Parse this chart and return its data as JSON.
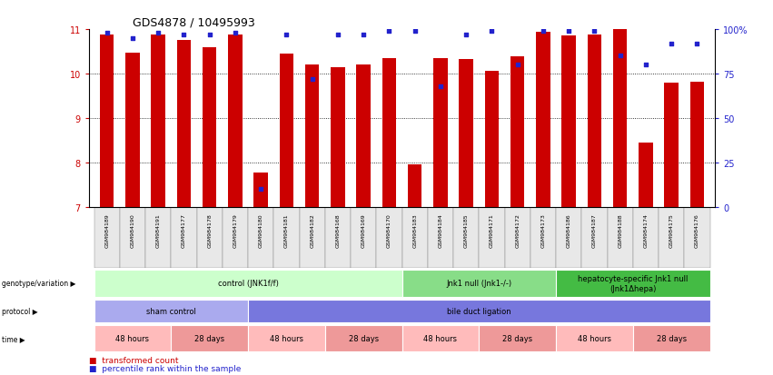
{
  "title": "GDS4878 / 10495993",
  "samples": [
    "GSM984189",
    "GSM984190",
    "GSM984191",
    "GSM984177",
    "GSM984178",
    "GSM984179",
    "GSM984180",
    "GSM984181",
    "GSM984182",
    "GSM984168",
    "GSM984169",
    "GSM984170",
    "GSM984183",
    "GSM984184",
    "GSM984185",
    "GSM984171",
    "GSM984172",
    "GSM984173",
    "GSM984186",
    "GSM984187",
    "GSM984188",
    "GSM984174",
    "GSM984175",
    "GSM984176"
  ],
  "bar_values": [
    10.88,
    10.47,
    10.87,
    10.75,
    10.6,
    10.87,
    7.78,
    10.46,
    10.2,
    10.15,
    10.2,
    10.35,
    7.95,
    10.35,
    10.32,
    10.07,
    10.38,
    10.95,
    10.85,
    10.87,
    11.0,
    8.45,
    9.8,
    9.82
  ],
  "dot_values": [
    98,
    95,
    98,
    97,
    97,
    98,
    10,
    97,
    72,
    97,
    97,
    99,
    99,
    68,
    97,
    99,
    80,
    99,
    99,
    99,
    85,
    80,
    92,
    92
  ],
  "ymin": 7,
  "ymax": 11,
  "yticks_left": [
    7,
    8,
    9,
    10,
    11
  ],
  "yticks_right": [
    0,
    25,
    50,
    75,
    100
  ],
  "bar_color": "#cc0000",
  "dot_color": "#2222cc",
  "genotype_groups": [
    {
      "label": "control (JNK1f/f)",
      "start": 0,
      "end": 11,
      "color": "#ccffcc"
    },
    {
      "label": "Jnk1 null (Jnk1-/-)",
      "start": 12,
      "end": 17,
      "color": "#88dd88"
    },
    {
      "label": "hepatocyte-specific Jnk1 null\n(Jnk1Δhepa)",
      "start": 18,
      "end": 23,
      "color": "#44bb44"
    }
  ],
  "protocol_groups": [
    {
      "label": "sham control",
      "start": 0,
      "end": 5,
      "color": "#aaaaee"
    },
    {
      "label": "bile duct ligation",
      "start": 6,
      "end": 23,
      "color": "#7777dd"
    }
  ],
  "time_groups": [
    {
      "label": "48 hours",
      "start": 0,
      "end": 2,
      "color": "#ffbbbb"
    },
    {
      "label": "28 days",
      "start": 3,
      "end": 5,
      "color": "#ee9999"
    },
    {
      "label": "48 hours",
      "start": 6,
      "end": 8,
      "color": "#ffbbbb"
    },
    {
      "label": "28 days",
      "start": 9,
      "end": 11,
      "color": "#ee9999"
    },
    {
      "label": "48 hours",
      "start": 12,
      "end": 14,
      "color": "#ffbbbb"
    },
    {
      "label": "28 days",
      "start": 15,
      "end": 17,
      "color": "#ee9999"
    },
    {
      "label": "48 hours",
      "start": 18,
      "end": 20,
      "color": "#ffbbbb"
    },
    {
      "label": "28 days",
      "start": 21,
      "end": 23,
      "color": "#ee9999"
    }
  ],
  "legend_bar_label": "transformed count",
  "legend_dot_label": "percentile rank within the sample",
  "row_labels": [
    "genotype/variation",
    "protocol",
    "time"
  ],
  "background_color": "#ffffff",
  "bar_width": 0.55
}
